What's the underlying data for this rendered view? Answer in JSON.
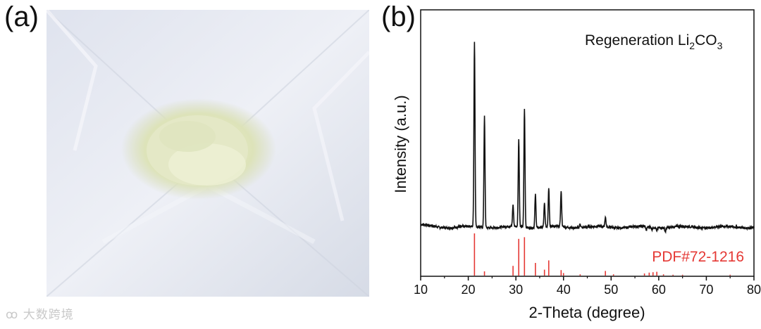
{
  "figure": {
    "panel_a_label": "(a)",
    "panel_b_label": "(b)",
    "watermark": "大数跨境"
  },
  "chart_data": {
    "type": "line",
    "title": "",
    "xlabel": "2-Theta (degree)",
    "ylabel": "Intensity (a.u.)",
    "xlim": [
      10,
      80
    ],
    "x_ticks": [
      10,
      20,
      30,
      40,
      50,
      60,
      70,
      80
    ],
    "y_ticks_shown": false,
    "grid": false,
    "legend": "none",
    "annotations": [
      {
        "text_main": "Regeneration Li",
        "sub1": "2",
        "mid": "CO",
        "sub2": "3",
        "color": "#111111"
      },
      {
        "text": "PDF#72-1216",
        "color": "#e53935"
      }
    ],
    "series": [
      {
        "role": "measured",
        "color": "#111111",
        "baseline": 0.05,
        "peaks": [
          {
            "x": 21.3,
            "y": 1.0
          },
          {
            "x": 23.4,
            "y": 0.62
          },
          {
            "x": 29.4,
            "y": 0.16
          },
          {
            "x": 30.6,
            "y": 0.5
          },
          {
            "x": 31.8,
            "y": 0.66
          },
          {
            "x": 34.1,
            "y": 0.22
          },
          {
            "x": 36.0,
            "y": 0.17
          },
          {
            "x": 36.9,
            "y": 0.25
          },
          {
            "x": 39.5,
            "y": 0.23
          },
          {
            "x": 43.5,
            "y": 0.07
          },
          {
            "x": 48.8,
            "y": 0.1
          },
          {
            "x": 57.4,
            "y": 0.03
          },
          {
            "x": 58.6,
            "y": 0.04
          },
          {
            "x": 59.6,
            "y": 0.03
          },
          {
            "x": 61.4,
            "y": 0.03
          },
          {
            "x": 75.0,
            "y": 0.05
          }
        ]
      },
      {
        "role": "reference",
        "color": "#e53935",
        "sticks": [
          {
            "x": 21.3,
            "y": 1.0
          },
          {
            "x": 23.4,
            "y": 0.1
          },
          {
            "x": 29.4,
            "y": 0.23
          },
          {
            "x": 30.6,
            "y": 0.87
          },
          {
            "x": 31.8,
            "y": 0.91
          },
          {
            "x": 34.1,
            "y": 0.3
          },
          {
            "x": 36.0,
            "y": 0.14
          },
          {
            "x": 36.9,
            "y": 0.36
          },
          {
            "x": 39.5,
            "y": 0.13
          },
          {
            "x": 40.0,
            "y": 0.06
          },
          {
            "x": 43.5,
            "y": 0.03
          },
          {
            "x": 48.8,
            "y": 0.11
          },
          {
            "x": 50.5,
            "y": 0.03
          },
          {
            "x": 57.0,
            "y": 0.05
          },
          {
            "x": 58.0,
            "y": 0.07
          },
          {
            "x": 58.8,
            "y": 0.08
          },
          {
            "x": 59.6,
            "y": 0.09
          },
          {
            "x": 61.0,
            "y": 0.03
          },
          {
            "x": 63.0,
            "y": 0.02
          },
          {
            "x": 65.0,
            "y": 0.02
          },
          {
            "x": 75.0,
            "y": 0.02
          }
        ]
      }
    ]
  }
}
